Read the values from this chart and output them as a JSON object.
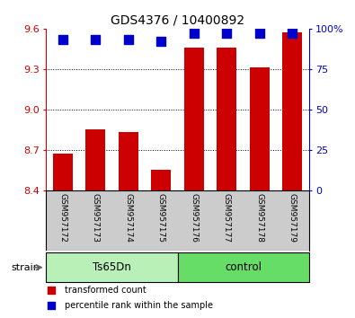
{
  "title": "GDS4376 / 10400892",
  "samples": [
    "GSM957172",
    "GSM957173",
    "GSM957174",
    "GSM957175",
    "GSM957176",
    "GSM957177",
    "GSM957178",
    "GSM957179"
  ],
  "bar_values": [
    8.67,
    8.85,
    8.83,
    8.55,
    9.46,
    9.46,
    9.31,
    9.57
  ],
  "percentile_values": [
    93,
    93,
    93,
    92,
    97,
    97,
    97,
    97
  ],
  "bar_color": "#cc0000",
  "dot_color": "#0000cc",
  "ylim_left": [
    8.4,
    9.6
  ],
  "ylim_right": [
    0,
    100
  ],
  "yticks_left": [
    8.4,
    8.7,
    9.0,
    9.3,
    9.6
  ],
  "yticks_right": [
    0,
    25,
    50,
    75,
    100
  ],
  "groups": [
    {
      "label": "Ts65Dn",
      "indices": [
        0,
        1,
        2,
        3
      ],
      "color": "#b8f0b8"
    },
    {
      "label": "control",
      "indices": [
        4,
        5,
        6,
        7
      ],
      "color": "#66dd66"
    }
  ],
  "group_row_label": "strain",
  "background_color": "#ffffff",
  "plot_bg_color": "#ffffff",
  "tick_label_area_color": "#cccccc",
  "bar_bottom": 8.4,
  "bar_width": 0.6,
  "dot_size": 55,
  "dot_marker": "s",
  "legend_items": [
    {
      "label": "transformed count",
      "color": "#cc0000",
      "marker": "s"
    },
    {
      "label": "percentile rank within the sample",
      "color": "#0000cc",
      "marker": "s"
    }
  ]
}
